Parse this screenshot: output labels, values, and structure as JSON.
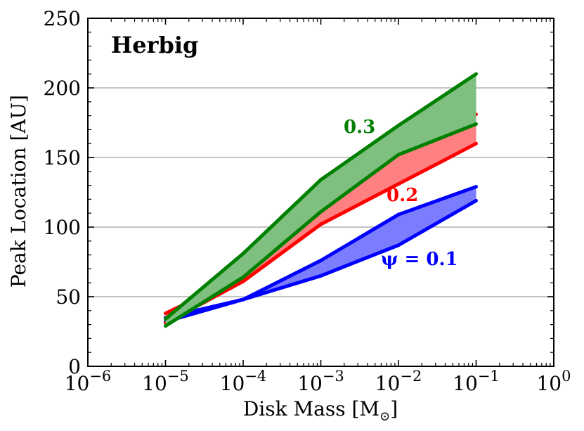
{
  "chart_data": {
    "type": "area",
    "title": "Herbig",
    "xlabel": "Disk Mass [M",
    "xlabel_sub": "⊙",
    "xlabel_end": "]",
    "ylabel": "Peak Location [AU]",
    "xscale": "log",
    "xlim_exp": [
      -6,
      0
    ],
    "ylim": [
      0,
      250
    ],
    "yticks": [
      "0",
      "50",
      "100",
      "150",
      "200",
      "250"
    ],
    "xticks": [
      {
        "base": "10",
        "exp": "−6"
      },
      {
        "base": "10",
        "exp": "−5"
      },
      {
        "base": "10",
        "exp": "−4"
      },
      {
        "base": "10",
        "exp": "−3"
      },
      {
        "base": "10",
        "exp": "−2"
      },
      {
        "base": "10",
        "exp": "−1"
      },
      {
        "base": "10",
        "exp": "0"
      }
    ],
    "grid": "horizontal",
    "x": [
      1e-05,
      0.0001,
      0.001,
      0.01,
      0.1
    ],
    "series": [
      {
        "name": "ψ = 0.1",
        "label": "ψ = 0.1",
        "color": "#0000ff",
        "fill": "#7c7cff",
        "upper": [
          35,
          48,
          76,
          109,
          129
        ],
        "lower": [
          32,
          48,
          65,
          87,
          119
        ]
      },
      {
        "name": "0.2",
        "label": "0.2",
        "color": "#ff0000",
        "fill": "#ff8080",
        "upper": [
          38,
          65,
          115,
          153,
          181
        ],
        "lower": [
          31,
          61,
          102,
          131,
          160
        ]
      },
      {
        "name": "0.3",
        "label": "0.3",
        "color": "#008000",
        "fill": "#7fbf7f",
        "upper": [
          34,
          81,
          134,
          173,
          210
        ],
        "lower": [
          29,
          64,
          111,
          152,
          174
        ]
      }
    ]
  }
}
